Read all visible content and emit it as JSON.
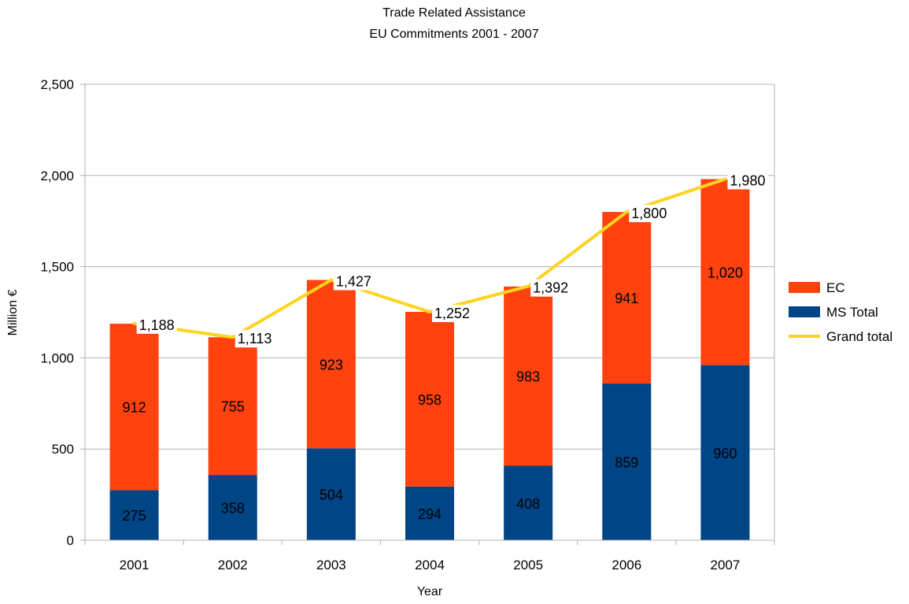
{
  "chart_data": {
    "type": "bar",
    "stacked": true,
    "title": "Trade Related Assistance",
    "subtitle": "EU Commitments 2001 - 2007",
    "xlabel": "Year",
    "ylabel": "Million €",
    "ylim": [
      0,
      2500
    ],
    "yticks": [
      0,
      500,
      1000,
      1500,
      2000,
      2500
    ],
    "ytick_labels": [
      "0",
      "500",
      "1,000",
      "1,500",
      "2,000",
      "2,500"
    ],
    "grid": true,
    "legend_position": "right",
    "categories": [
      "2001",
      "2002",
      "2003",
      "2004",
      "2005",
      "2006",
      "2007"
    ],
    "series": [
      {
        "name": "MS Total",
        "kind": "bar",
        "color": "#004586",
        "values": [
          275,
          358,
          504,
          294,
          408,
          859,
          960
        ],
        "labels": [
          "275",
          "358",
          "504",
          "294",
          "408",
          "859",
          "960"
        ]
      },
      {
        "name": "EC",
        "kind": "bar",
        "color": "#ff420e",
        "values": [
          912,
          755,
          923,
          958,
          983,
          941,
          1020
        ],
        "labels": [
          "912",
          "755",
          "923",
          "958",
          "983",
          "941",
          "1,020"
        ]
      },
      {
        "name": "Grand total",
        "kind": "line",
        "color": "#ffd320",
        "values": [
          1188,
          1113,
          1427,
          1252,
          1392,
          1800,
          1980
        ],
        "labels": [
          "1,188",
          "1,113",
          "1,427",
          "1,252",
          "1,392",
          "1,800",
          "1,980"
        ]
      }
    ],
    "legend": [
      {
        "name": "EC",
        "marker": "box",
        "color": "#ff420e"
      },
      {
        "name": "MS Total",
        "marker": "box",
        "color": "#004586"
      },
      {
        "name": "Grand total",
        "marker": "line",
        "color": "#ffd320"
      }
    ]
  }
}
